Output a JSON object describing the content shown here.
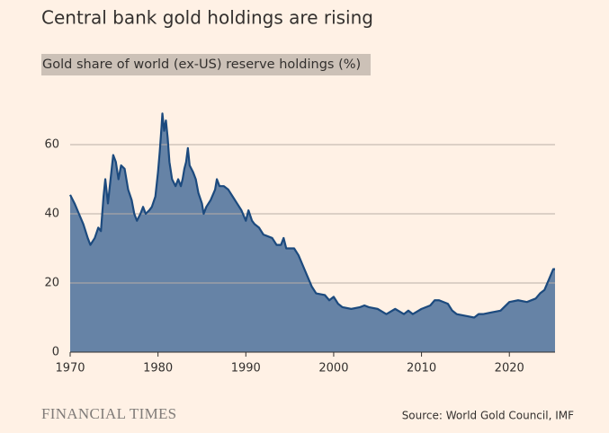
{
  "chart_data": {
    "type": "area",
    "title": "Central bank gold holdings are rising",
    "subtitle": "Gold share of world (ex-US) reserve holdings (%)",
    "brand": "FINANCIAL TIMES",
    "source": "Source: World Gold Council, IMF",
    "color": "#1c4a7e",
    "fill": "#6683a6",
    "grid": true,
    "xlim": [
      1970,
      2025.2
    ],
    "xticks": [
      1970,
      1980,
      1990,
      2000,
      2010,
      2020
    ],
    "ylim": [
      0,
      70
    ],
    "yticks": [
      0,
      20,
      40,
      60
    ],
    "x": [
      1970,
      1970.5,
      1971,
      1971.5,
      1972,
      1972.3,
      1972.8,
      1973.2,
      1973.5,
      1973.8,
      1974,
      1974.3,
      1974.6,
      1974.9,
      1975.2,
      1975.5,
      1975.8,
      1976.2,
      1976.6,
      1977,
      1977.3,
      1977.6,
      1978,
      1978.3,
      1978.6,
      1979,
      1979.3,
      1979.7,
      1980,
      1980.2,
      1980.4,
      1980.5,
      1980.7,
      1980.9,
      1981.1,
      1981.3,
      1981.6,
      1982,
      1982.3,
      1982.6,
      1982.8,
      1983,
      1983.2,
      1983.4,
      1983.6,
      1984,
      1984.3,
      1984.6,
      1985,
      1985.2,
      1985.5,
      1986,
      1986.5,
      1986.7,
      1987,
      1987.5,
      1988,
      1988.5,
      1989,
      1989.5,
      1990,
      1990.3,
      1990.7,
      1991,
      1991.5,
      1992,
      1993,
      1993.5,
      1994,
      1994.3,
      1994.6,
      1995,
      1995.5,
      1996,
      1996.5,
      1997,
      1997.5,
      1998,
      1999,
      1999.5,
      2000,
      2000.5,
      2001,
      2002,
      2003,
      2003.5,
      2004,
      2005,
      2006,
      2007,
      2008,
      2008.5,
      2009,
      2010,
      2011,
      2011.5,
      2012,
      2013,
      2013.5,
      2014,
      2015,
      2016,
      2016.5,
      2017,
      2018,
      2019,
      2020,
      2021,
      2022,
      2023,
      2023.5,
      2024,
      2024.5,
      2025,
      2025.2
    ],
    "values": [
      45.5,
      43,
      40,
      37,
      33,
      31,
      33,
      36,
      35,
      45,
      50,
      43,
      50,
      57,
      55,
      50,
      54,
      53,
      47,
      44,
      40,
      38,
      40,
      42,
      40,
      41,
      42,
      45,
      52,
      58,
      65,
      69,
      64,
      67,
      62,
      55,
      50,
      48,
      50,
      48,
      50,
      53,
      55,
      59,
      54,
      52,
      50,
      46,
      43,
      40,
      42,
      44,
      47,
      50,
      48,
      48,
      47,
      45,
      43,
      41,
      38,
      41,
      38,
      37,
      36,
      34,
      33,
      31,
      31,
      33,
      30,
      30,
      30,
      28,
      25,
      22,
      19,
      17,
      16.5,
      15,
      16,
      14,
      13,
      12.5,
      13,
      13.5,
      13,
      12.5,
      11,
      12.5,
      11,
      12,
      11,
      12.5,
      13.5,
      15,
      15,
      14,
      12,
      11,
      10.5,
      10,
      11,
      11,
      11.5,
      12,
      14.5,
      15,
      14.5,
      15.5,
      17,
      18,
      21,
      24,
      24
    ]
  }
}
